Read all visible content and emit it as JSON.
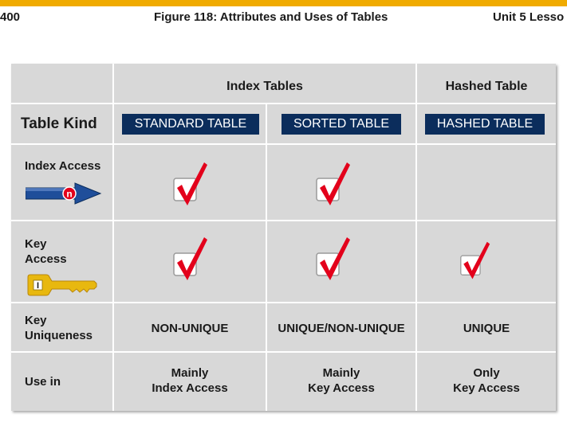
{
  "header": {
    "page_number": "400",
    "figure_title": "Figure 118: Attributes and Uses of Tables",
    "unit": "Unit 5 Lesso"
  },
  "table": {
    "group_headers": [
      "Index Tables",
      "Hashed Table"
    ],
    "row_labels": {
      "table_kind": "Table Kind",
      "index_access": "Index Access",
      "key_access_line1": "Key",
      "key_access_line2": "Access",
      "key_uniqueness_line1": "Key",
      "key_uniqueness_line2": "Uniqueness",
      "use_in": "Use in"
    },
    "kinds": [
      "STANDARD TABLE",
      "SORTED TABLE",
      "HASHED TABLE"
    ],
    "index_access_supported": [
      true,
      true,
      false
    ],
    "key_access_supported": [
      true,
      true,
      true
    ],
    "uniqueness": [
      "NON-UNIQUE",
      "UNIQUE/NON-UNIQUE",
      "UNIQUE"
    ],
    "use_in": [
      [
        "Mainly",
        "Index Access"
      ],
      [
        "Mainly",
        "Key Access"
      ],
      [
        "Only",
        "Key Access"
      ]
    ],
    "index_icon_letter": "n",
    "key_icon_glyph": "I"
  },
  "colors": {
    "accent_bar": "#f0ab00",
    "kind_box": "#0b2d5c",
    "check_red": "#e3001b",
    "arrow_blue": "#1f4e9a",
    "key_gold": "#e8b80f"
  }
}
